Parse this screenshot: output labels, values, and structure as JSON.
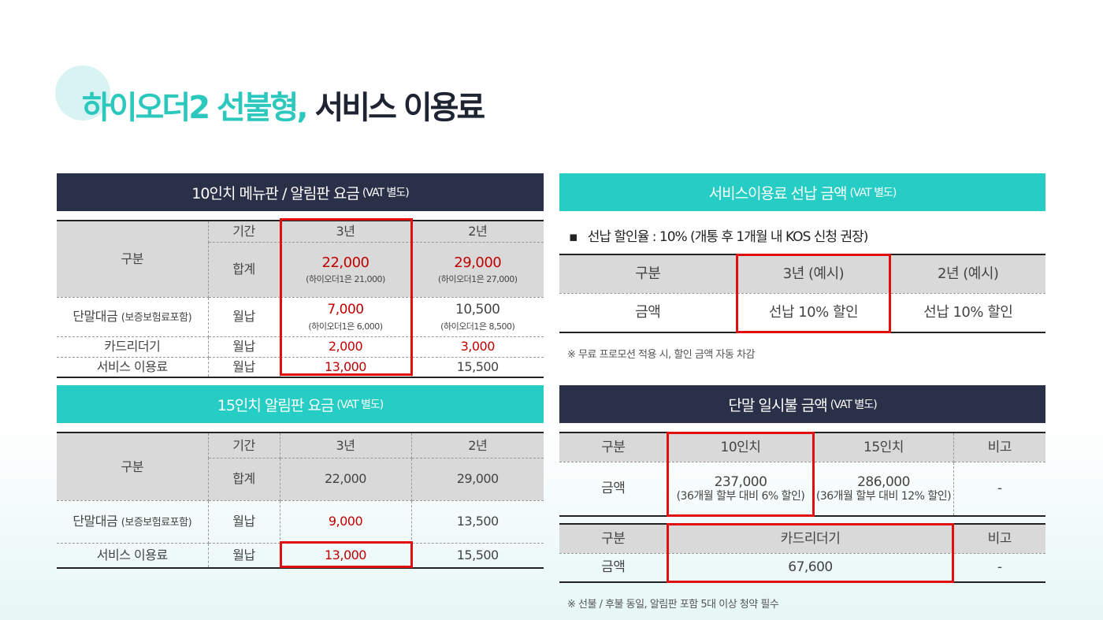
{
  "title": {
    "part1": "하이오더2 선불형,",
    "part2": "서비스 이용료"
  },
  "colors": {
    "teal": "#26cdc4",
    "navy": "#2a3048",
    "highlight": "#e01010",
    "red_text": "#c00000"
  },
  "t10": {
    "header": "10인치 메뉴판 / 알림판 요금",
    "vat": "(VAT 별도)",
    "gubun": "구분",
    "period": "기간",
    "y3": "3년",
    "y2": "2년",
    "total": "합계",
    "total3": "22,000",
    "total3_sub": "(하이오더1은 21,000)",
    "total2": "29,000",
    "total2_sub": "(하이오더1은 27,000)",
    "r1": "단말대금",
    "r1_sub": "(보증보험료포함)",
    "monthly": "월납",
    "r1_3": "7,000",
    "r1_3_sub": "(하이오더1은 6,000)",
    "r1_2": "10,500",
    "r1_2_sub": "(하이오더1은 8,500)",
    "r2": "카드리더기",
    "r2_3": "2,000",
    "r2_2": "3,000",
    "r3": "서비스 이용료",
    "r3_3": "13,000",
    "r3_2": "15,500"
  },
  "t15": {
    "header": "15인치 알림판 요금",
    "vat": "(VAT 별도)",
    "gubun": "구분",
    "period": "기간",
    "y3": "3년",
    "y2": "2년",
    "total": "합계",
    "total3": "22,000",
    "total2": "29,000",
    "r1": "단말대금",
    "r1_sub": "(보증보험료포함)",
    "monthly": "월납",
    "r1_3": "9,000",
    "r1_2": "13,500",
    "r2": "서비스 이용료",
    "r2_3": "13,000",
    "r2_2": "15,500"
  },
  "prepay": {
    "header": "서비스이용료 선납 금액",
    "vat": "(VAT 별도)",
    "bullet": "선납 할인율 : 10% (개통 후 1개월 내 KOS 신청 권장)",
    "gubun": "구분",
    "c3": "3년 (예시)",
    "c2": "2년 (예시)",
    "amount": "금액",
    "v3": "선납 10% 할인",
    "v2": "선납 10% 할인",
    "note": "※ 무료 프로모션 적용 시, 할인 금액 자동 차감"
  },
  "lump": {
    "header": "단말 일시불 금액",
    "vat": "(VAT 별도)",
    "gubun": "구분",
    "c10": "10인치",
    "c15": "15인치",
    "remark": "비고",
    "amount": "금액",
    "v10": "237,000",
    "v10_sub": "(36개월 할부 대비 6% 할인)",
    "v15": "286,000",
    "v15_sub": "(36개월 할부 대비 12% 할인)",
    "dash": "-",
    "card": "카드리더기",
    "card_v": "67,600",
    "note": "※ 선불 / 후불 동일, 알림판 포함 5대 이상 청약 필수"
  }
}
